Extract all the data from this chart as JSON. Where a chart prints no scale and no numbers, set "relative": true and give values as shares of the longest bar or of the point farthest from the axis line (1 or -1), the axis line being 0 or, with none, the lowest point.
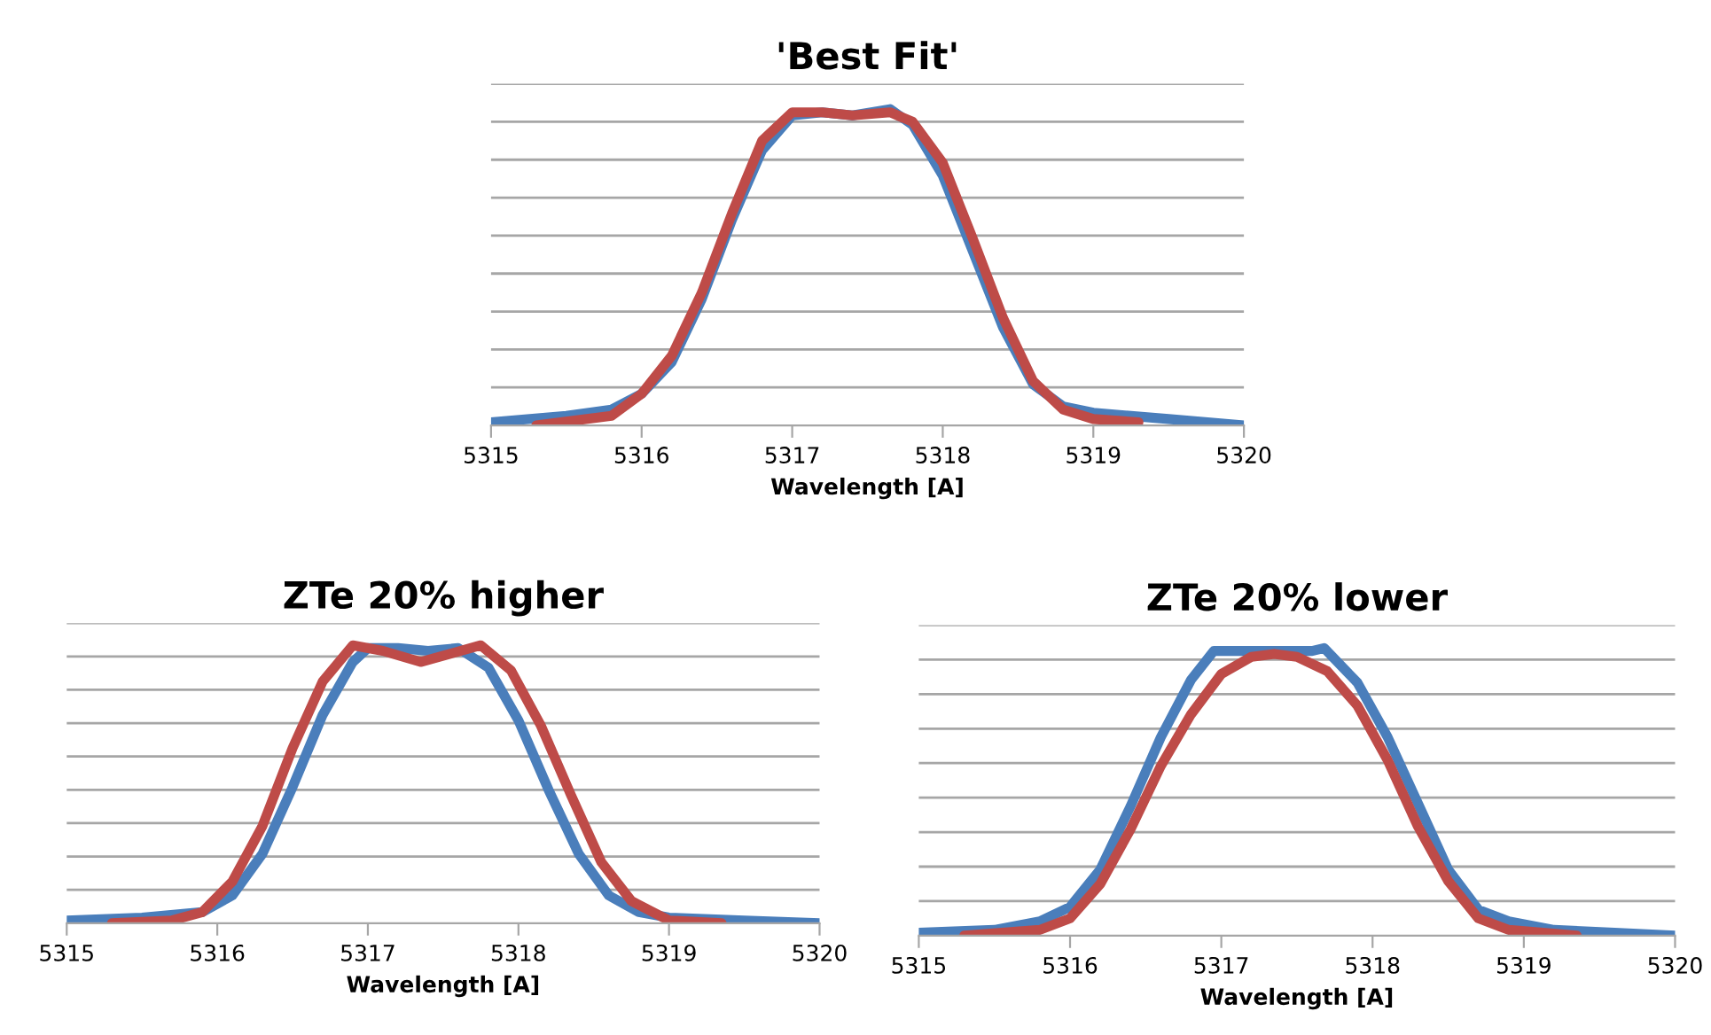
{
  "chart_data": [
    {
      "type": "line",
      "title": "'Best Fit'",
      "xlabel": "Wavelength [A]",
      "relative": true,
      "grid": "y",
      "xlim": [
        5315,
        5320
      ],
      "xticks": [
        5315,
        5316,
        5317,
        5318,
        5319,
        5320
      ],
      "series": [
        {
          "color": "#4a7ebb",
          "x": [
            5315,
            5315.5,
            5315.8,
            5316.0,
            5316.2,
            5316.4,
            5316.6,
            5316.8,
            5317.0,
            5317.2,
            5317.4,
            5317.65,
            5317.8,
            5318.0,
            5318.2,
            5318.4,
            5318.6,
            5318.8,
            5319.0,
            5319.5,
            5320
          ],
          "values": [
            0.01,
            0.03,
            0.05,
            0.1,
            0.2,
            0.4,
            0.65,
            0.87,
            0.98,
            0.99,
            0.98,
            1,
            0.95,
            0.79,
            0.55,
            0.31,
            0.13,
            0.06,
            0.04,
            0.02,
            0
          ]
        },
        {
          "color": "#be4b48",
          "x": [
            5315.3,
            5315.8,
            5316.0,
            5316.2,
            5316.4,
            5316.6,
            5316.8,
            5317.0,
            5317.2,
            5317.4,
            5317.65,
            5317.8,
            5318.0,
            5318.2,
            5318.4,
            5318.6,
            5318.8,
            5319.0,
            5319.3
          ],
          "values": [
            0,
            0.03,
            0.1,
            0.22,
            0.42,
            0.67,
            0.9,
            0.99,
            0.99,
            0.98,
            0.99,
            0.96,
            0.83,
            0.59,
            0.34,
            0.14,
            0.05,
            0.02,
            0.01
          ]
        }
      ]
    },
    {
      "type": "line",
      "title": "ZTe 20% higher",
      "xlabel": "Wavelength [A]",
      "relative": true,
      "grid": "y",
      "xlim": [
        5315,
        5320
      ],
      "xticks": [
        5315,
        5316,
        5317,
        5318,
        5319,
        5320
      ],
      "series": [
        {
          "color": "#4a7ebb",
          "x": [
            5315,
            5315.5,
            5315.9,
            5316.1,
            5316.3,
            5316.5,
            5316.7,
            5316.9,
            5317.0,
            5317.2,
            5317.4,
            5317.6,
            5317.8,
            5318.0,
            5318.2,
            5318.4,
            5318.6,
            5318.8,
            5319.0,
            5319.5,
            5320
          ],
          "values": [
            0.01,
            0.02,
            0.04,
            0.1,
            0.25,
            0.49,
            0.75,
            0.94,
            0.99,
            0.99,
            0.98,
            0.99,
            0.92,
            0.73,
            0.48,
            0.25,
            0.1,
            0.04,
            0.02,
            0.01,
            0
          ]
        },
        {
          "color": "#be4b48",
          "x": [
            5315.3,
            5315.7,
            5315.9,
            5316.1,
            5316.3,
            5316.5,
            5316.7,
            5316.9,
            5317.1,
            5317.35,
            5317.55,
            5317.75,
            5317.95,
            5318.15,
            5318.35,
            5318.55,
            5318.75,
            5319.0,
            5319.35
          ],
          "values": [
            0,
            0.01,
            0.04,
            0.15,
            0.35,
            0.63,
            0.87,
            1,
            0.98,
            0.94,
            0.97,
            1,
            0.91,
            0.71,
            0.46,
            0.22,
            0.08,
            0.01,
            0
          ]
        }
      ]
    },
    {
      "type": "line",
      "title": "ZTe 20% lower",
      "xlabel": "Wavelength [A]",
      "relative": true,
      "grid": "y",
      "xlim": [
        5315,
        5320
      ],
      "xticks": [
        5315,
        5316,
        5317,
        5318,
        5319,
        5320
      ],
      "series": [
        {
          "color": "#4a7ebb",
          "x": [
            5315,
            5315.5,
            5315.8,
            5316.0,
            5316.2,
            5316.4,
            5316.6,
            5316.8,
            5316.95,
            5317.2,
            5317.45,
            5317.6,
            5317.68,
            5317.9,
            5318.1,
            5318.3,
            5318.5,
            5318.7,
            5318.9,
            5319.2,
            5319.6,
            5320
          ],
          "values": [
            0.01,
            0.02,
            0.05,
            0.1,
            0.23,
            0.45,
            0.69,
            0.89,
            0.99,
            0.99,
            0.99,
            0.99,
            1,
            0.88,
            0.69,
            0.46,
            0.23,
            0.09,
            0.05,
            0.02,
            0.01,
            0
          ]
        },
        {
          "color": "#be4b48",
          "x": [
            5315.3,
            5315.8,
            5316.0,
            5316.2,
            5316.4,
            5316.6,
            5316.8,
            5317.0,
            5317.2,
            5317.35,
            5317.5,
            5317.7,
            5317.9,
            5318.1,
            5318.3,
            5318.5,
            5318.7,
            5318.9,
            5319.35
          ],
          "values": [
            0,
            0.02,
            0.06,
            0.18,
            0.37,
            0.59,
            0.77,
            0.91,
            0.97,
            0.98,
            0.97,
            0.92,
            0.8,
            0.61,
            0.38,
            0.19,
            0.06,
            0.02,
            0
          ]
        }
      ]
    }
  ]
}
